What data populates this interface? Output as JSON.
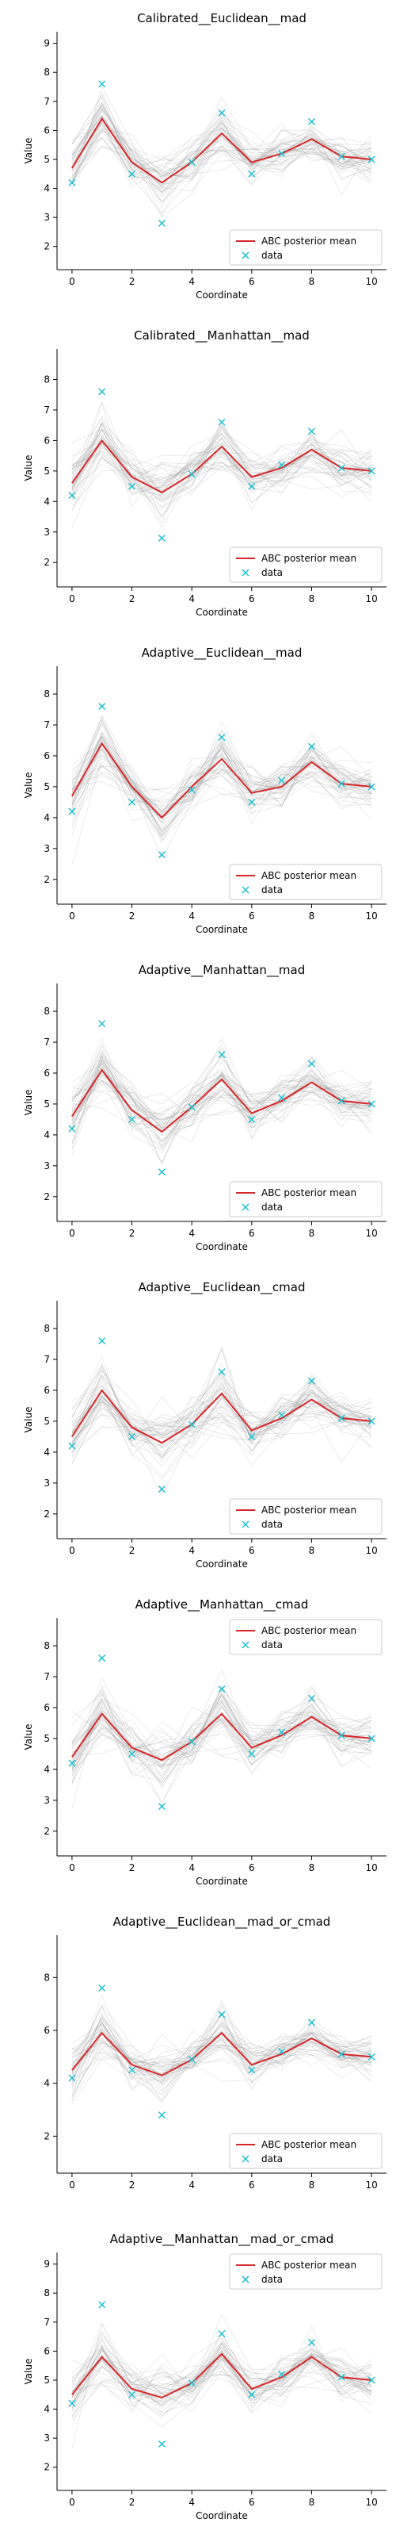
{
  "legend": {
    "mean_label": "ABC posterior mean",
    "data_label": "data"
  },
  "colors": {
    "mean": "#d62728",
    "data": "#17becf",
    "samples": "#8c8c8c"
  },
  "chart_data": [
    {
      "type": "line",
      "title": "Calibrated__Euclidean__mad",
      "xlabel": "Coordinate",
      "ylabel": "Value",
      "xlim": [
        -0.5,
        10.5
      ],
      "ylim": [
        1.2,
        9.4
      ],
      "xticks": [
        0,
        2,
        4,
        6,
        8,
        10
      ],
      "yticks": [
        2,
        3,
        4,
        5,
        6,
        7,
        8,
        9
      ],
      "legend_position": "lower-right",
      "x": [
        0,
        1,
        2,
        3,
        4,
        5,
        6,
        7,
        8,
        9,
        10
      ],
      "series": [
        {
          "name": "ABC posterior mean",
          "values": [
            4.7,
            6.4,
            4.9,
            4.2,
            4.9,
            5.9,
            4.9,
            5.2,
            5.7,
            5.1,
            5.0
          ]
        },
        {
          "name": "data",
          "values": [
            4.2,
            7.6,
            4.5,
            2.8,
            4.9,
            6.6,
            4.5,
            5.2,
            6.3,
            5.1,
            5.0
          ]
        }
      ]
    },
    {
      "type": "line",
      "title": "Calibrated__Manhattan__mad",
      "xlabel": "Coordinate",
      "ylabel": "Value",
      "xlim": [
        -0.5,
        10.5
      ],
      "ylim": [
        1.2,
        9.0
      ],
      "xticks": [
        0,
        2,
        4,
        6,
        8,
        10
      ],
      "yticks": [
        2,
        3,
        4,
        5,
        6,
        7,
        8
      ],
      "legend_position": "lower-right",
      "x": [
        0,
        1,
        2,
        3,
        4,
        5,
        6,
        7,
        8,
        9,
        10
      ],
      "series": [
        {
          "name": "ABC posterior mean",
          "values": [
            4.6,
            6.0,
            4.8,
            4.3,
            4.9,
            5.8,
            4.8,
            5.1,
            5.7,
            5.1,
            5.0
          ]
        },
        {
          "name": "data",
          "values": [
            4.2,
            7.6,
            4.5,
            2.8,
            4.9,
            6.6,
            4.5,
            5.2,
            6.3,
            5.1,
            5.0
          ]
        }
      ]
    },
    {
      "type": "line",
      "title": "Adaptive__Euclidean__mad",
      "xlabel": "Coordinate",
      "ylabel": "Value",
      "xlim": [
        -0.5,
        10.5
      ],
      "ylim": [
        1.2,
        8.9
      ],
      "xticks": [
        0,
        2,
        4,
        6,
        8,
        10
      ],
      "yticks": [
        2,
        3,
        4,
        5,
        6,
        7,
        8
      ],
      "legend_position": "lower-right",
      "x": [
        0,
        1,
        2,
        3,
        4,
        5,
        6,
        7,
        8,
        9,
        10
      ],
      "series": [
        {
          "name": "ABC posterior mean",
          "values": [
            4.7,
            6.4,
            5.0,
            4.0,
            5.0,
            5.9,
            4.8,
            5.0,
            5.8,
            5.1,
            5.0
          ]
        },
        {
          "name": "data",
          "values": [
            4.2,
            7.6,
            4.5,
            2.8,
            4.9,
            6.6,
            4.5,
            5.2,
            6.3,
            5.1,
            5.0
          ]
        }
      ]
    },
    {
      "type": "line",
      "title": "Adaptive__Manhattan__mad",
      "xlabel": "Coordinate",
      "ylabel": "Value",
      "xlim": [
        -0.5,
        10.5
      ],
      "ylim": [
        1.2,
        8.9
      ],
      "xticks": [
        0,
        2,
        4,
        6,
        8,
        10
      ],
      "yticks": [
        2,
        3,
        4,
        5,
        6,
        7,
        8
      ],
      "legend_position": "lower-right",
      "x": [
        0,
        1,
        2,
        3,
        4,
        5,
        6,
        7,
        8,
        9,
        10
      ],
      "series": [
        {
          "name": "ABC posterior mean",
          "values": [
            4.6,
            6.1,
            4.8,
            4.1,
            4.9,
            5.8,
            4.7,
            5.1,
            5.7,
            5.1,
            5.0
          ]
        },
        {
          "name": "data",
          "values": [
            4.2,
            7.6,
            4.5,
            2.8,
            4.9,
            6.6,
            4.5,
            5.2,
            6.3,
            5.1,
            5.0
          ]
        }
      ]
    },
    {
      "type": "line",
      "title": "Adaptive__Euclidean__cmad",
      "xlabel": "Coordinate",
      "ylabel": "Value",
      "xlim": [
        -0.5,
        10.5
      ],
      "ylim": [
        1.2,
        8.9
      ],
      "xticks": [
        0,
        2,
        4,
        6,
        8,
        10
      ],
      "yticks": [
        2,
        3,
        4,
        5,
        6,
        7,
        8
      ],
      "legend_position": "lower-right",
      "x": [
        0,
        1,
        2,
        3,
        4,
        5,
        6,
        7,
        8,
        9,
        10
      ],
      "series": [
        {
          "name": "ABC posterior mean",
          "values": [
            4.5,
            6.0,
            4.8,
            4.3,
            4.9,
            5.9,
            4.7,
            5.1,
            5.7,
            5.1,
            5.0
          ]
        },
        {
          "name": "data",
          "values": [
            4.2,
            7.6,
            4.5,
            2.8,
            4.9,
            6.6,
            4.5,
            5.2,
            6.3,
            5.1,
            5.0
          ]
        }
      ]
    },
    {
      "type": "line",
      "title": "Adaptive__Manhattan__cmad",
      "xlabel": "Coordinate",
      "ylabel": "Value",
      "xlim": [
        -0.5,
        10.5
      ],
      "ylim": [
        1.2,
        8.9
      ],
      "xticks": [
        0,
        2,
        4,
        6,
        8,
        10
      ],
      "yticks": [
        2,
        3,
        4,
        5,
        6,
        7,
        8
      ],
      "legend_position": "top-right",
      "x": [
        0,
        1,
        2,
        3,
        4,
        5,
        6,
        7,
        8,
        9,
        10
      ],
      "series": [
        {
          "name": "ABC posterior mean",
          "values": [
            4.4,
            5.8,
            4.7,
            4.3,
            4.9,
            5.8,
            4.7,
            5.1,
            5.7,
            5.1,
            5.0
          ]
        },
        {
          "name": "data",
          "values": [
            4.2,
            7.6,
            4.5,
            2.8,
            4.9,
            6.6,
            4.5,
            5.2,
            6.3,
            5.1,
            5.0
          ]
        }
      ]
    },
    {
      "type": "line",
      "title": "Adaptive__Euclidean__mad_or_cmad",
      "xlabel": "",
      "ylabel": "",
      "xlim": [
        -0.5,
        10.5
      ],
      "ylim": [
        0.6,
        9.6
      ],
      "xticks": [
        0,
        2,
        4,
        6,
        8,
        10
      ],
      "yticks": [
        2,
        4,
        6,
        8
      ],
      "legend_position": "lower-right",
      "x": [
        0,
        1,
        2,
        3,
        4,
        5,
        6,
        7,
        8,
        9,
        10
      ],
      "series": [
        {
          "name": "ABC posterior mean",
          "values": [
            4.5,
            5.9,
            4.7,
            4.3,
            4.9,
            5.9,
            4.7,
            5.1,
            5.7,
            5.1,
            5.0
          ]
        },
        {
          "name": "data",
          "values": [
            4.2,
            7.6,
            4.5,
            2.8,
            4.9,
            6.6,
            4.5,
            5.2,
            6.3,
            5.1,
            5.0
          ]
        }
      ]
    },
    {
      "type": "line",
      "title": "Adaptive__Manhattan__mad_or_cmad",
      "xlabel": "Coordinate",
      "ylabel": "Value",
      "xlim": [
        -0.5,
        10.5
      ],
      "ylim": [
        1.2,
        9.4
      ],
      "xticks": [
        0,
        2,
        4,
        6,
        8,
        10
      ],
      "yticks": [
        2,
        3,
        4,
        5,
        6,
        7,
        8,
        9
      ],
      "legend_position": "top-right",
      "x": [
        0,
        1,
        2,
        3,
        4,
        5,
        6,
        7,
        8,
        9,
        10
      ],
      "series": [
        {
          "name": "ABC posterior mean",
          "values": [
            4.5,
            5.8,
            4.7,
            4.4,
            4.9,
            5.9,
            4.7,
            5.1,
            5.8,
            5.1,
            5.0
          ]
        },
        {
          "name": "data",
          "values": [
            4.2,
            7.6,
            4.5,
            2.8,
            4.9,
            6.6,
            4.5,
            5.2,
            6.3,
            5.1,
            5.0
          ]
        }
      ]
    }
  ]
}
